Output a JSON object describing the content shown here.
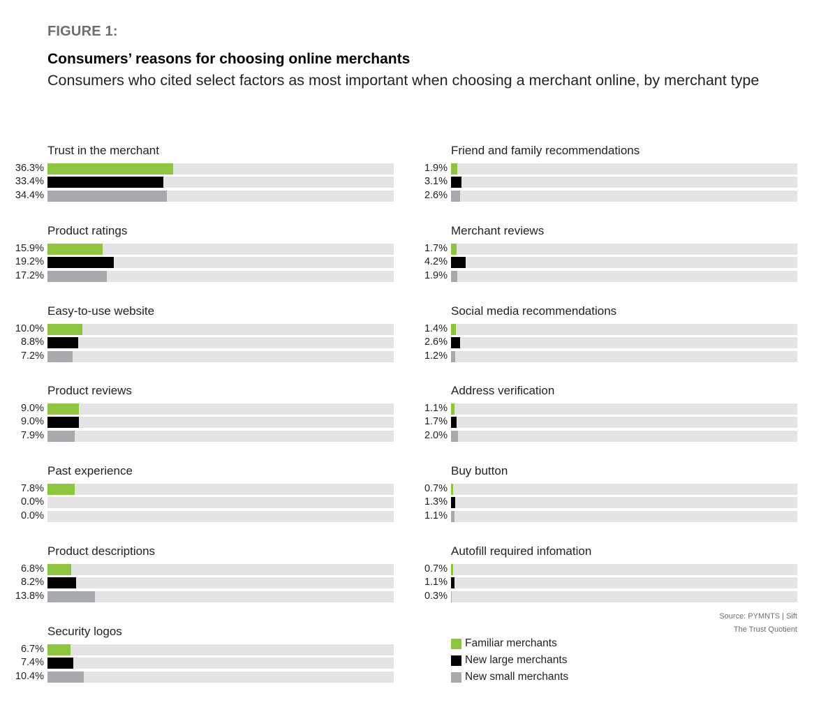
{
  "figure_label": "FIGURE 1:",
  "chart_data": {
    "type": "bar",
    "title": "Consumers’ reasons for choosing online merchants",
    "subtitle": "Consumers who cited select factors as most important when choosing a merchant online, by merchant type",
    "xlim": [
      0,
      100
    ],
    "series": [
      {
        "name": "Familiar merchants",
        "color": "#8dc53f"
      },
      {
        "name": "New large merchants",
        "color": "#000000"
      },
      {
        "name": "New small merchants",
        "color": "#a7a9ac"
      }
    ],
    "groups": [
      {
        "label": "Trust in the merchant",
        "values": [
          36.3,
          33.4,
          34.4
        ],
        "value_labels": [
          "36.3%",
          "33.4%",
          "34.4%"
        ]
      },
      {
        "label": "Product ratings",
        "values": [
          15.9,
          19.2,
          17.2
        ],
        "value_labels": [
          "15.9%",
          "19.2%",
          "17.2%"
        ]
      },
      {
        "label": "Easy-to-use website",
        "values": [
          10.0,
          8.8,
          7.2
        ],
        "value_labels": [
          "10.0%",
          "8.8%",
          "7.2%"
        ]
      },
      {
        "label": "Product reviews",
        "values": [
          9.0,
          9.0,
          7.9
        ],
        "value_labels": [
          "9.0%",
          "9.0%",
          "7.9%"
        ]
      },
      {
        "label": "Past experience",
        "values": [
          7.8,
          0.0,
          0.0
        ],
        "value_labels": [
          "7.8%",
          "0.0%",
          "0.0%"
        ]
      },
      {
        "label": "Product descriptions",
        "values": [
          6.8,
          8.2,
          13.8
        ],
        "value_labels": [
          "6.8%",
          "8.2%",
          "13.8%"
        ]
      },
      {
        "label": "Security logos",
        "values": [
          6.7,
          7.4,
          10.4
        ],
        "value_labels": [
          "6.7%",
          "7.4%",
          "10.4%"
        ]
      },
      {
        "label": "Friend and family recommendations",
        "values": [
          1.9,
          3.1,
          2.6
        ],
        "value_labels": [
          "1.9%",
          "3.1%",
          "2.6%"
        ]
      },
      {
        "label": "Merchant reviews",
        "values": [
          1.7,
          4.2,
          1.9
        ],
        "value_labels": [
          "1.7%",
          "4.2%",
          "1.9%"
        ]
      },
      {
        "label": "Social media recommendations",
        "values": [
          1.4,
          2.6,
          1.2
        ],
        "value_labels": [
          "1.4%",
          "2.6%",
          "1.2%"
        ]
      },
      {
        "label": "Address verification",
        "values": [
          1.1,
          1.7,
          2.0
        ],
        "value_labels": [
          "1.1%",
          "1.7%",
          "2.0%"
        ]
      },
      {
        "label": "Buy button",
        "values": [
          0.7,
          1.3,
          1.1
        ],
        "value_labels": [
          "0.7%",
          "1.3%",
          "1.1%"
        ]
      },
      {
        "label": "Autofill required infomation",
        "values": [
          0.7,
          1.1,
          0.3
        ],
        "value_labels": [
          "0.7%",
          "1.1%",
          "0.3%"
        ]
      }
    ]
  },
  "source": {
    "line1": "Source: PYMNTS | Sift",
    "line2": "The Trust Quotient"
  }
}
